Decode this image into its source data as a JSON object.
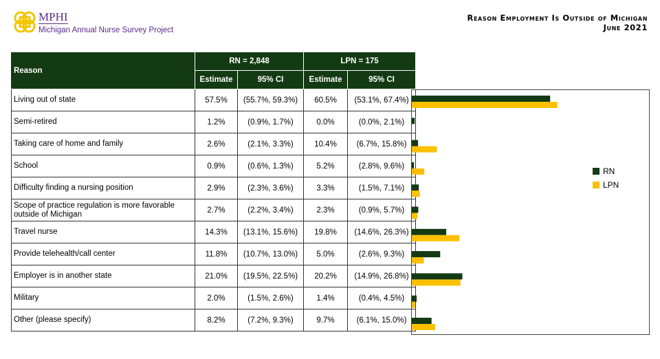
{
  "logo": {
    "brand": "MPHI",
    "subtitle": "Michigan Annual Nurse Survey Project"
  },
  "title": {
    "line1": "Reason Employment Is Outside of Michigan",
    "line2": "June 2021"
  },
  "table": {
    "reason_header": "Reason",
    "groups": [
      "RN = 2,848",
      "LPN = 175"
    ],
    "subheaders": [
      "Estimate",
      "95% CI",
      "Estimate",
      "95% CI"
    ],
    "rows": [
      [
        "Living out of state",
        "57.5%",
        "(55.7%, 59.3%)",
        "60.5%",
        "(53.1%, 67.4%)"
      ],
      [
        "Semi-retired",
        "1.2%",
        "(0.9%, 1.7%)",
        "0.0%",
        "(0.0%, 2.1%)"
      ],
      [
        "Taking care of home and family",
        "2.6%",
        "(2.1%, 3.3%)",
        "10.4%",
        "(6.7%, 15.8%)"
      ],
      [
        "School",
        "0.9%",
        "(0.6%, 1.3%)",
        "5.2%",
        "(2.8%, 9.6%)"
      ],
      [
        "Difficulty finding a nursing position",
        "2.9%",
        "(2.3%, 3.6%)",
        "3.3%",
        "(1.5%, 7.1%)"
      ],
      [
        "Scope of practice regulation is more favorable outside of Michigan",
        "2.7%",
        "(2.2%, 3.4%)",
        "2.3%",
        "(0.9%, 5.7%)"
      ],
      [
        "Travel nurse",
        "14.3%",
        "(13.1%, 15.6%)",
        "19.8%",
        "(14.6%, 26.3%)"
      ],
      [
        "Provide telehealth/call center",
        "11.8%",
        "(10.7%, 13.0%)",
        "5.0%",
        "(2.6%, 9.3%)"
      ],
      [
        "Employer is in another state",
        "21.0%",
        "(19.5%, 22.5%)",
        "20.2%",
        "(14.9%, 26.8%)"
      ],
      [
        "Military",
        "2.0%",
        "(1.5%, 2.6%)",
        "1.4%",
        "(0.4%, 4.5%)"
      ],
      [
        "Other (please specify)",
        "8.2%",
        "(7.2%, 9.3%)",
        "9.7%",
        "(6.1%, 15.0%)"
      ]
    ]
  },
  "chart_data": {
    "type": "bar",
    "orientation": "horizontal",
    "categories": [
      "Living out of state",
      "Semi-retired",
      "Taking care of home and family",
      "School",
      "Difficulty finding a nursing position",
      "Scope of practice regulation is more favorable outside of Michigan",
      "Travel nurse",
      "Provide telehealth/call center",
      "Employer is in another state",
      "Military",
      "Other (please specify)"
    ],
    "series": [
      {
        "name": "RN",
        "color": "#133a13",
        "values": [
          57.5,
          1.2,
          2.6,
          0.9,
          2.9,
          2.7,
          14.3,
          11.8,
          21.0,
          2.0,
          8.2
        ]
      },
      {
        "name": "LPN",
        "color": "#fcc000",
        "values": [
          60.5,
          0.0,
          10.4,
          5.2,
          3.3,
          2.3,
          19.8,
          5.0,
          20.2,
          1.4,
          9.7
        ]
      }
    ],
    "legend": "right"
  }
}
